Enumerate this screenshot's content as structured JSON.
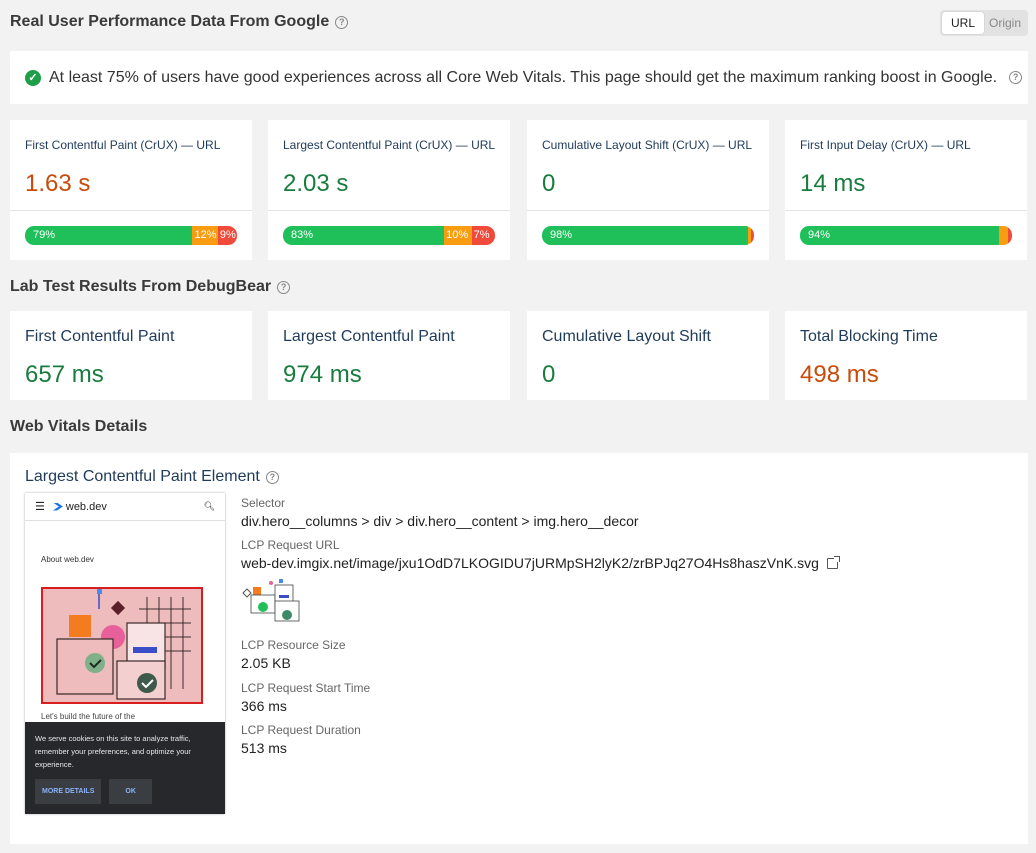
{
  "crux": {
    "title": "Real User Performance Data From Google",
    "toggle": {
      "url": "URL",
      "origin": "Origin"
    },
    "banner": "At least 75% of users have good experiences across all Core Web Vitals. This page should get the maximum ranking boost in Google.",
    "cards": [
      {
        "label": "First Contentful Paint (CrUX) — URL",
        "value": "1.63 s",
        "good": "79%",
        "ni": "12%",
        "poor": "9%",
        "good_pct": 79,
        "ni_pct": 12,
        "poor_pct": 9
      },
      {
        "label": "Largest Contentful Paint (CrUX) — URL",
        "value": "2.03 s",
        "good": "83%",
        "ni": "10%",
        "poor": "7%",
        "good_pct": 83,
        "ni_pct": 10,
        "poor_pct": 7
      },
      {
        "label": "Cumulative Layout Shift (CrUX) — URL",
        "value": "0",
        "good": "98%",
        "good_pct": 98,
        "ni_pct": 1.2,
        "poor_pct": 0.8
      },
      {
        "label": "First Input Delay (CrUX) — URL",
        "value": "14 ms",
        "good": "94%",
        "good_pct": 94,
        "ni_pct": 4,
        "poor_pct": 2
      }
    ]
  },
  "lab": {
    "title": "Lab Test Results From DebugBear",
    "cards": [
      {
        "label": "First Contentful Paint",
        "value": "657 ms"
      },
      {
        "label": "Largest Contentful Paint",
        "value": "974 ms"
      },
      {
        "label": "Cumulative Layout Shift",
        "value": "0"
      },
      {
        "label": "Total Blocking Time",
        "value": "498 ms"
      }
    ]
  },
  "details": {
    "section_title": "Web Vitals Details",
    "card_title": "Largest Contentful Paint Element",
    "screenshot": {
      "site_name": "web.dev",
      "about": "About web.dev",
      "peek_text": "Let's build the future of the",
      "cookie_text": "We serve cookies on this site to analyze traffic, remember your preferences, and optimize your experience.",
      "more_details": "MORE DETAILS",
      "ok": "OK"
    },
    "fields": {
      "selector_label": "Selector",
      "selector_value": "div.hero__columns > div > div.hero__content > img.hero__decor",
      "url_label": "LCP Request URL",
      "url_value": "web-dev.imgix.net/image/jxu1OdD7LKOGIDU7jURMpSH2lyK2/zrBPJq27O4Hs8haszVnK.svg",
      "size_label": "LCP Resource Size",
      "size_value": "2.05 KB",
      "start_label": "LCP Request Start Time",
      "start_value": "366 ms",
      "duration_label": "LCP Request Duration",
      "duration_value": "513 ms"
    }
  },
  "colors": {
    "good": "#1fc05a",
    "needs_improvement": "#f89c12",
    "poor": "#ef4a3a",
    "value_green": "#187c3e",
    "value_orange": "#c84b0a"
  }
}
